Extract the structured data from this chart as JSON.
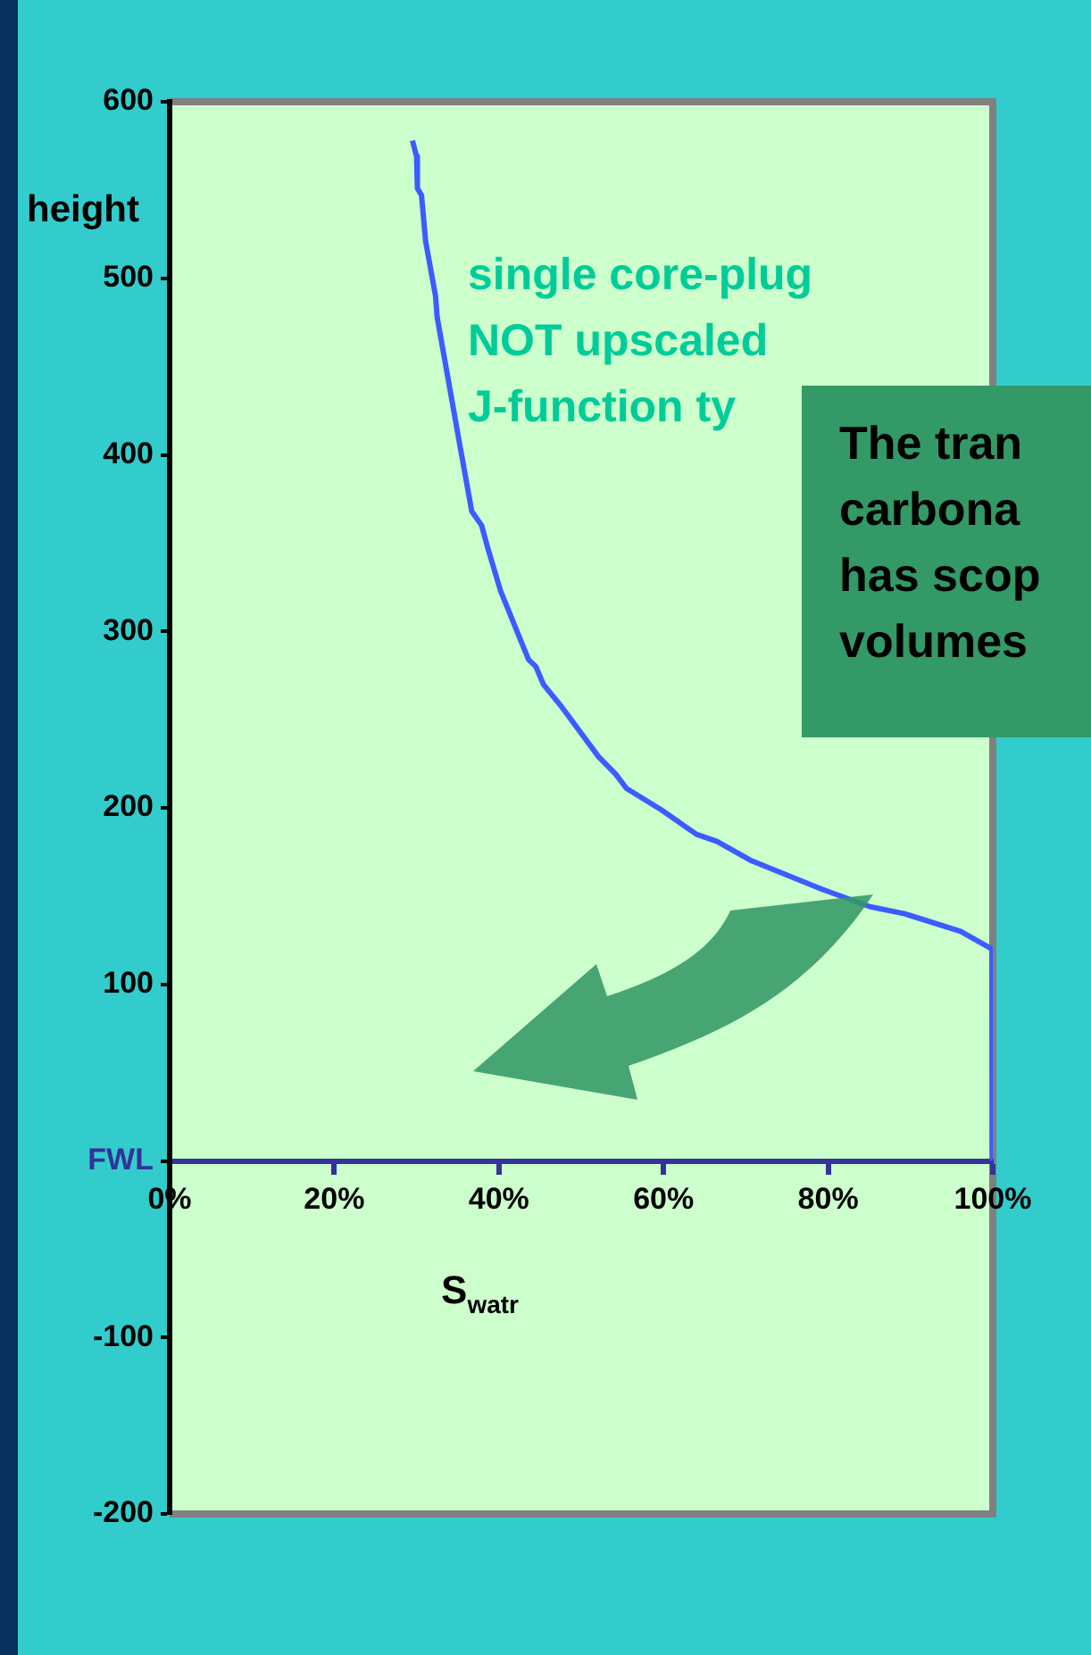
{
  "chart_data": {
    "type": "line",
    "xlabel": "S$_{watr}$",
    "ylabel": "height",
    "annotations": [
      "single core-plug",
      "NOT upscaled",
      "J-function ty",
      "The tran",
      "carbona",
      "has scop",
      "volumes"
    ],
    "series": [
      {
        "color": "#3c5cff",
        "x": [
          29.5,
          30,
          30.1,
          30.6,
          31.1,
          32.3,
          32.5,
          35.2,
          36.7,
          37.9,
          38.6,
          40.2,
          43.6,
          44.5,
          45.4,
          47.5,
          52.1,
          54.2,
          55.5,
          59.7,
          64,
          66.5,
          70.7,
          79.2,
          85.1,
          89.3,
          96.1,
          99.9,
          100
        ],
        "values": [
          578,
          569,
          551,
          547,
          521,
          490,
          478,
          407,
          368,
          360,
          348,
          323,
          284,
          280,
          270,
          258,
          229,
          219,
          211,
          199,
          185,
          181,
          170,
          154,
          144,
          140,
          130,
          120,
          0
        ]
      }
    ],
    "xlim": [
      0,
      100
    ],
    "xticks": [
      {
        "value": 0,
        "label": "0%"
      },
      {
        "value": 20,
        "label": "20%"
      },
      {
        "value": 40,
        "label": "40%"
      },
      {
        "value": 60,
        "label": "60%"
      },
      {
        "value": 80,
        "label": "80%"
      },
      {
        "value": 100,
        "label": "100%"
      }
    ],
    "ylim": [
      -200,
      600
    ],
    "yticks": [
      -200,
      -100,
      {
        "value": 0,
        "label": "FWL"
      },
      100,
      200,
      300,
      400,
      500,
      600
    ],
    "grid": false,
    "legend": false,
    "marker": "none",
    "line_style": "solid"
  }
}
